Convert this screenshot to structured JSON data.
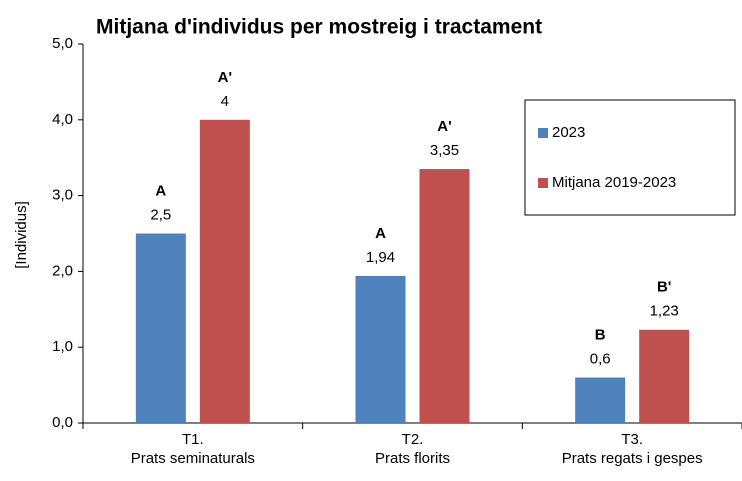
{
  "chart_data": {
    "type": "bar",
    "title": "Mitjana d'individus per mostreig i tractament",
    "y_label": "[Individus]",
    "categories": [
      "T1.\nPrats seminaturals",
      "T2.\nPrats florits",
      "T3.\nPrats regats i gespes"
    ],
    "series": [
      {
        "name": "2023",
        "color": "#4f81bd",
        "values": [
          2.5,
          1.94,
          0.6
        ],
        "value_labels": [
          "2,5",
          "1,94",
          "0,6"
        ],
        "annotations": [
          "A",
          "A",
          "B"
        ]
      },
      {
        "name": "Mitjana 2019-2023",
        "color": "#c0504d",
        "values": [
          4,
          3.35,
          1.23
        ],
        "value_labels": [
          "4",
          "3,35",
          "1,23"
        ],
        "annotations": [
          "A'",
          "A'",
          "B'"
        ]
      }
    ],
    "ylim": [
      0,
      5
    ],
    "yticks": [
      {
        "value": 0,
        "label": "0,0"
      },
      {
        "value": 1,
        "label": "1,0"
      },
      {
        "value": 2,
        "label": "2,0"
      },
      {
        "value": 3,
        "label": "3,0"
      },
      {
        "value": 4,
        "label": "4,0"
      },
      {
        "value": 5,
        "label": "5,0"
      }
    ],
    "legend": "upper right"
  }
}
